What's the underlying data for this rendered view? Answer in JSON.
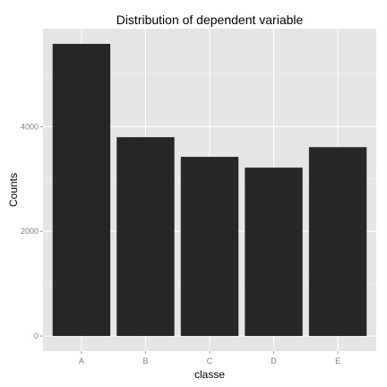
{
  "chart_data": {
    "type": "bar",
    "title": "Distribution of dependent variable",
    "xlabel": "classe",
    "ylabel": "Counts",
    "categories": [
      "A",
      "B",
      "C",
      "D",
      "E"
    ],
    "values": [
      5580,
      3797,
      3422,
      3216,
      3607
    ],
    "ylim": [
      -290,
      5870
    ],
    "yticks": [
      0,
      2000,
      4000
    ],
    "ytick_labels": [
      "0",
      "2000",
      "4000"
    ],
    "grid": true,
    "legend": "none",
    "colors": {
      "panel_background": "#e5e5e5",
      "grid_major": "#ffffff",
      "grid_minor": "#f2f2f2",
      "bar_fill": "#262626"
    }
  }
}
